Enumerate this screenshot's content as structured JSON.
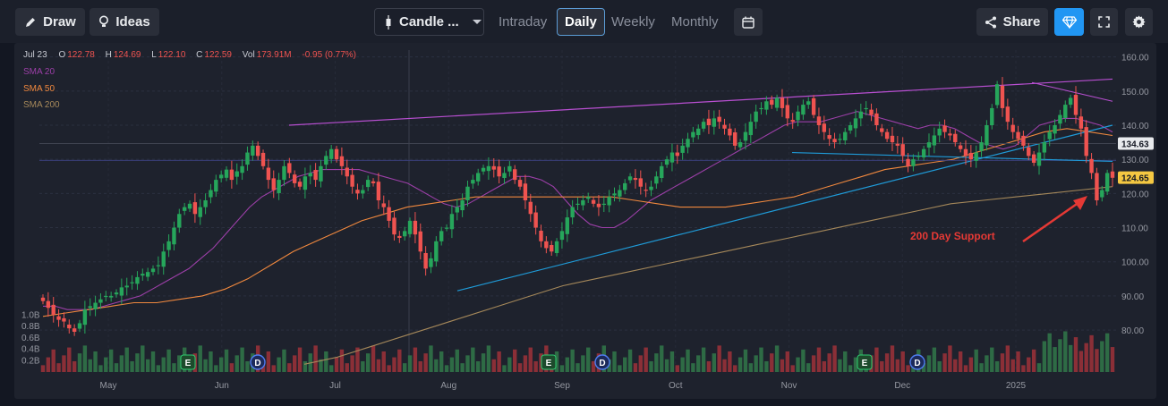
{
  "toolbar": {
    "draw_label": "Draw",
    "ideas_label": "Ideas",
    "chart_type_label": "Candle ...",
    "intervals": [
      "Intraday",
      "Daily",
      "Weekly",
      "Monthly"
    ],
    "active_interval": "Daily",
    "share_label": "Share",
    "accent": "#2196f3"
  },
  "ohlc": {
    "date": "Jul 23",
    "o_label": "O",
    "o": "122.78",
    "h_label": "H",
    "h": "124.69",
    "l_label": "L",
    "l": "122.10",
    "c_label": "C",
    "c": "122.59",
    "vol_label": "Vol",
    "vol": "173.91M",
    "change": "-0.95 (0.77%)"
  },
  "legend": {
    "sma20": "SMA 20",
    "sma20_color": "#9c3fa8",
    "sma50": "SMA 50",
    "sma50_color": "#f0883e",
    "sma200": "SMA 200",
    "sma200_color": "#a5885a"
  },
  "annotation": {
    "text": "200 Day Support",
    "color": "#e53935"
  },
  "chart_data": {
    "type": "candlestick",
    "price_axis": {
      "ticks": [
        160,
        150,
        140,
        130,
        120,
        110,
        100,
        90,
        80
      ],
      "ylim": [
        74,
        162
      ]
    },
    "volume_axis": {
      "ticks": [
        "1.0B",
        "0.8B",
        "0.6B",
        "0.4B",
        "0.2B"
      ],
      "ymax_billions": 1.1
    },
    "price_labels": {
      "last": "124.65",
      "last_color": "#f5c842",
      "reference": "134.63"
    },
    "x_tick_labels": [
      "May",
      "Jun",
      "Jul",
      "Aug",
      "Sep",
      "Oct",
      "Nov",
      "Dec",
      "2025"
    ],
    "ohlc_close_path": [
      88.5,
      86.5,
      84.5,
      83.0,
      82.5,
      80.5,
      79.5,
      82.0,
      86.0,
      87.0,
      88.0,
      89.0,
      90.0,
      90.0,
      91.0,
      92.5,
      93.0,
      94.0,
      95.5,
      96.5,
      97.0,
      98.0,
      99.0,
      103.0,
      106.0,
      110.0,
      114.0,
      116.0,
      117.0,
      114.0,
      116.0,
      118.0,
      121.0,
      124.0,
      125.5,
      127.0,
      124.0,
      126.5,
      128.0,
      132.0,
      134.0,
      131.0,
      128.0,
      124.0,
      121.0,
      124.0,
      128.0,
      126.0,
      123.0,
      122.0,
      125.0,
      126.0,
      124.0,
      128.0,
      131.0,
      133.0,
      130.0,
      128.0,
      125.0,
      122.0,
      120.0,
      121.0,
      124.0,
      123.0,
      118.0,
      116.0,
      112.0,
      108.0,
      107.0,
      109.0,
      112.0,
      108.0,
      103.0,
      98.0,
      101.0,
      106.0,
      109.0,
      110.0,
      114.0,
      116.0,
      118.0,
      122.0,
      124.0,
      126.0,
      127.5,
      128.0,
      127.0,
      125.0,
      126.0,
      128.0,
      124.0,
      122.0,
      118.0,
      114.0,
      110.0,
      106.0,
      104.0,
      103.0,
      106.0,
      109.0,
      113.0,
      116.0,
      117.0,
      118.0,
      119.0,
      117.0,
      116.0,
      117.0,
      119.0,
      120.0,
      121.0,
      123.0,
      125.0,
      124.0,
      122.0,
      121.0,
      122.0,
      125.0,
      128.0,
      130.0,
      132.0,
      131.0,
      134.0,
      136.0,
      138.0,
      139.0,
      141.0,
      140.0,
      142.0,
      141.0,
      139.0,
      137.0,
      134.0,
      135.0,
      138.0,
      141.0,
      144.0,
      145.0,
      147.0,
      146.0,
      148.0,
      145.0,
      142.0,
      141.0,
      144.0,
      146.0,
      147.0,
      143.0,
      140.0,
      138.0,
      136.0,
      135.0,
      136.0,
      138.0,
      140.0,
      142.0,
      144.0,
      145.0,
      143.0,
      140.0,
      138.0,
      136.0,
      135.0,
      134.0,
      131.0,
      128.0,
      130.0,
      131.0,
      133.0,
      135.0,
      137.0,
      139.0,
      138.0,
      137.0,
      135.0,
      133.0,
      131.0,
      130.0,
      132.0,
      135.0,
      140.0,
      145.0,
      152.0,
      145.0,
      141.0,
      138.0,
      136.0,
      134.0,
      131.0,
      129.0,
      132.0,
      135.0,
      138.0,
      140.0,
      143.0,
      146.0,
      148.0,
      143.0,
      139.0,
      131.0,
      126.0,
      118.0,
      121.0,
      126.0,
      124.6
    ],
    "sma20": [
      87,
      87,
      86,
      86,
      86,
      87,
      88,
      89,
      90,
      92,
      94,
      96,
      98,
      101,
      104,
      108,
      112,
      116,
      119,
      121,
      123,
      125,
      126,
      127,
      127,
      127,
      127,
      126,
      125,
      124,
      123,
      121,
      119,
      117,
      116,
      117,
      119,
      121,
      123,
      125,
      125,
      124,
      122,
      118,
      114,
      111,
      110,
      110,
      112,
      115,
      118,
      120,
      122,
      124,
      126,
      128,
      130,
      132,
      134,
      136,
      138,
      140,
      141,
      141,
      141,
      142,
      143,
      144,
      143,
      142,
      141,
      140,
      139,
      140,
      140,
      139,
      137,
      135,
      134,
      133,
      134,
      137,
      140,
      141,
      142,
      142,
      141,
      140,
      138
    ],
    "sma50": [
      84,
      85,
      86,
      87,
      88,
      88,
      89,
      90,
      92,
      95,
      99,
      103,
      106,
      109,
      112,
      114,
      116,
      117,
      118,
      119,
      119,
      119,
      119,
      119,
      119,
      119,
      118,
      117,
      116,
      116,
      116,
      117,
      118,
      119,
      121,
      123,
      125,
      127,
      128,
      129,
      130,
      132,
      134,
      136,
      138,
      139,
      138,
      137
    ],
    "sma200": [
      70,
      72,
      75,
      78,
      81,
      84,
      87,
      90,
      93,
      95,
      97,
      99,
      101,
      103,
      105,
      107,
      109,
      111,
      113,
      115,
      117,
      118,
      119,
      120,
      121,
      122
    ],
    "trendlines": [
      {
        "name": "resistance",
        "color": "#b84fd1",
        "from": [
          "Jun",
          140
        ],
        "to": [
          "2025",
          153.5
        ]
      },
      {
        "name": "support",
        "color": "#1f9bd8",
        "from": [
          "Aug",
          91.5
        ],
        "to": [
          "2025",
          140
        ]
      },
      {
        "name": "horizontal-resistance",
        "color": "#3a3f7a",
        "value": 129.7
      },
      {
        "name": "reference",
        "color": "#3f4350",
        "value": 134.63
      }
    ],
    "events": [
      {
        "label": "E",
        "kind": "earnings"
      },
      {
        "label": "D",
        "kind": "dividend"
      },
      {
        "label": "E",
        "kind": "earnings"
      },
      {
        "label": "D",
        "kind": "dividend"
      },
      {
        "label": "E",
        "kind": "earnings"
      },
      {
        "label": "D",
        "kind": "dividend"
      }
    ]
  }
}
